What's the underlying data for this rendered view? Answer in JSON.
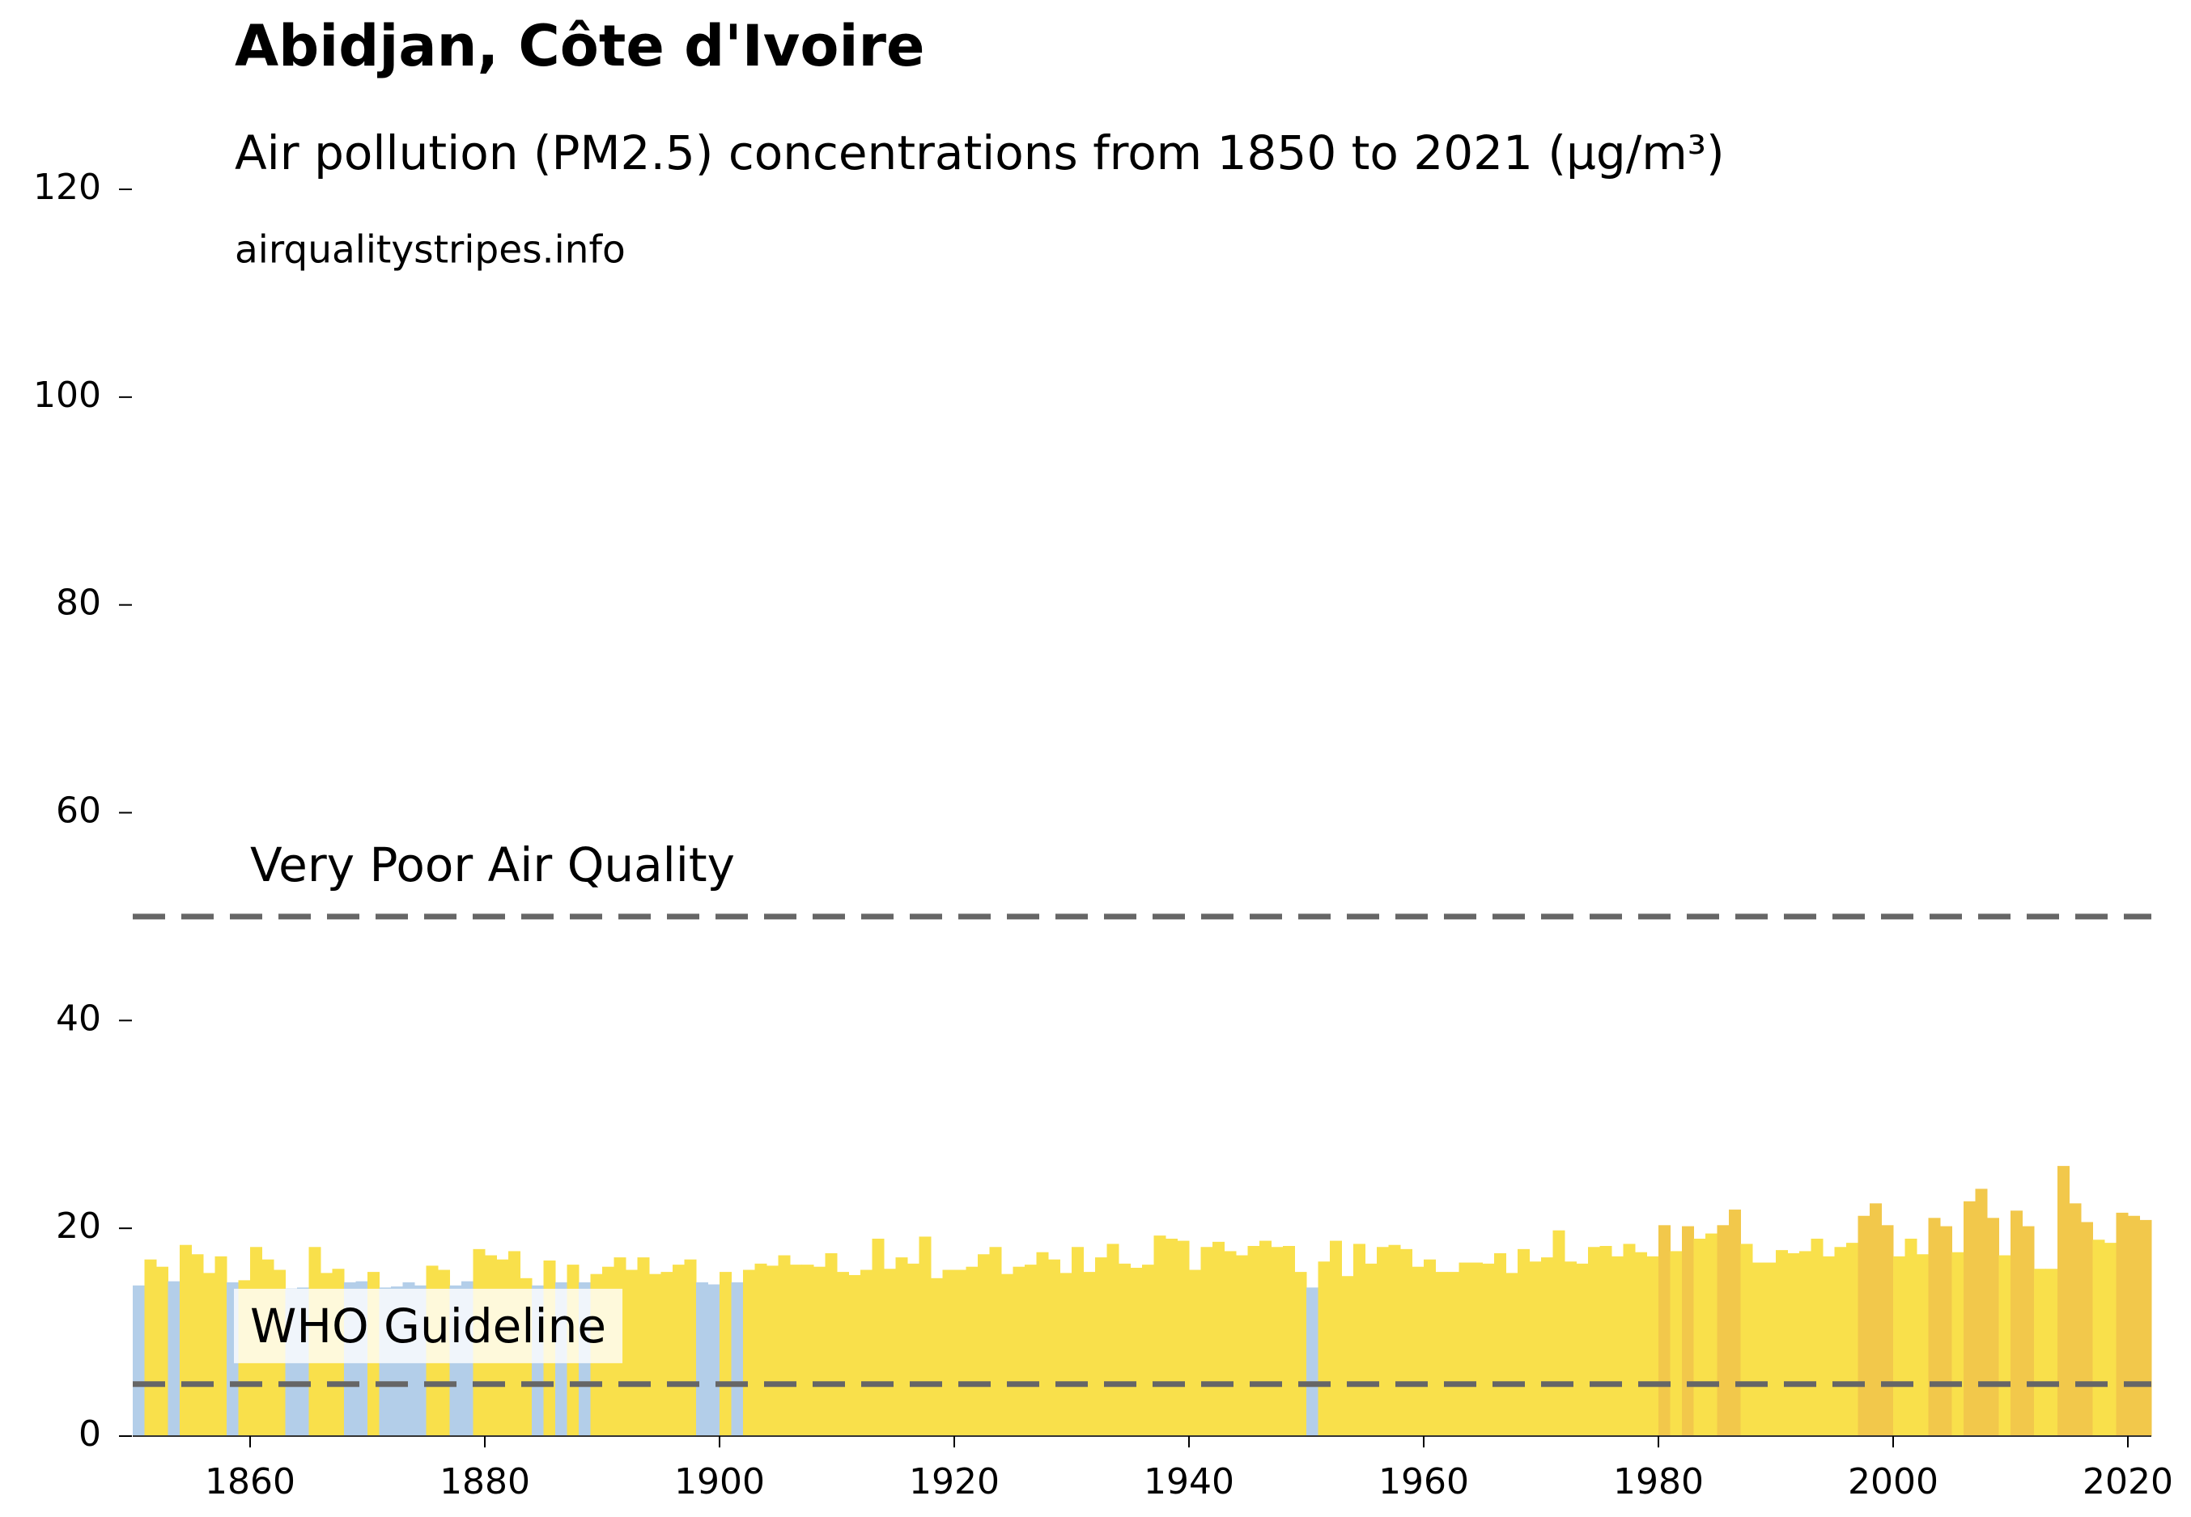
{
  "chart_data": {
    "type": "bar",
    "title": "Abidjan, Côte d'Ivoire",
    "subtitle": "Air pollution (PM2.5) concentrations from 1850 to 2021 (µg/m³)",
    "source": "airqualitystripes.info",
    "x": [
      1850,
      1851,
      1852,
      1853,
      1854,
      1855,
      1856,
      1857,
      1858,
      1859,
      1860,
      1861,
      1862,
      1863,
      1864,
      1865,
      1866,
      1867,
      1868,
      1869,
      1870,
      1871,
      1872,
      1873,
      1874,
      1875,
      1876,
      1877,
      1878,
      1879,
      1880,
      1881,
      1882,
      1883,
      1884,
      1885,
      1886,
      1887,
      1888,
      1889,
      1890,
      1891,
      1892,
      1893,
      1894,
      1895,
      1896,
      1897,
      1898,
      1899,
      1900,
      1901,
      1902,
      1903,
      1904,
      1905,
      1906,
      1907,
      1908,
      1909,
      1910,
      1911,
      1912,
      1913,
      1914,
      1915,
      1916,
      1917,
      1918,
      1919,
      1920,
      1921,
      1922,
      1923,
      1924,
      1925,
      1926,
      1927,
      1928,
      1929,
      1930,
      1931,
      1932,
      1933,
      1934,
      1935,
      1936,
      1937,
      1938,
      1939,
      1940,
      1941,
      1942,
      1943,
      1944,
      1945,
      1946,
      1947,
      1948,
      1949,
      1950,
      1951,
      1952,
      1953,
      1954,
      1955,
      1956,
      1957,
      1958,
      1959,
      1960,
      1961,
      1962,
      1963,
      1964,
      1965,
      1966,
      1967,
      1968,
      1969,
      1970,
      1971,
      1972,
      1973,
      1974,
      1975,
      1976,
      1977,
      1978,
      1979,
      1980,
      1981,
      1982,
      1983,
      1984,
      1985,
      1986,
      1987,
      1988,
      1989,
      1990,
      1991,
      1992,
      1993,
      1994,
      1995,
      1996,
      1997,
      1998,
      1999,
      2000,
      2001,
      2002,
      2003,
      2004,
      2005,
      2006,
      2007,
      2008,
      2009,
      2010,
      2011,
      2012,
      2013,
      2014,
      2015,
      2016,
      2017,
      2018,
      2019,
      2020,
      2021
    ],
    "values": [
      14.5,
      17,
      16.3,
      14.9,
      18.4,
      17.5,
      15.7,
      17.3,
      14.8,
      15,
      18.2,
      17,
      16,
      14.2,
      14.3,
      18.2,
      15.7,
      16.1,
      14.8,
      14.9,
      15.8,
      14.3,
      14.4,
      14.8,
      14.5,
      16.4,
      16,
      14.5,
      14.9,
      18,
      17.4,
      17,
      17.8,
      15.2,
      14.5,
      16.9,
      14.8,
      16.5,
      14.8,
      15.6,
      16.3,
      17.2,
      16,
      17.2,
      15.6,
      15.8,
      16.5,
      17,
      14.8,
      14.6,
      15.8,
      14.8,
      16,
      16.6,
      16.4,
      17.4,
      16.5,
      16.5,
      16.3,
      17.6,
      15.8,
      15.5,
      16,
      19,
      16.1,
      17.2,
      16.6,
      19.2,
      15.2,
      16,
      16,
      16.3,
      17.5,
      18.2,
      15.6,
      16.3,
      16.5,
      17.7,
      17,
      15.7,
      18.2,
      15.8,
      17.2,
      18.5,
      16.6,
      16.2,
      16.5,
      19.3,
      19,
      18.8,
      16,
      18.2,
      18.7,
      17.8,
      17.4,
      18.3,
      18.8,
      18.2,
      18.3,
      15.8,
      14.3,
      16.8,
      18.8,
      15.4,
      18.5,
      16.6,
      18.2,
      18.4,
      18,
      16.3,
      17,
      15.8,
      15.8,
      16.7,
      16.7,
      16.6,
      17.6,
      15.7,
      18,
      16.8,
      17.2,
      19.8,
      16.8,
      16.6,
      18.2,
      18.3,
      17.3,
      18.5,
      17.7,
      17.3,
      20.3,
      17.8,
      20.2,
      19,
      19.5,
      20.3,
      21.8,
      18.5,
      16.7,
      16.7,
      17.9,
      17.6,
      17.8,
      19,
      17.3,
      18.2,
      18.6,
      21.2,
      22.4,
      20.3,
      17.3,
      19,
      17.5,
      21,
      20.2,
      17.7,
      22.6,
      23.8,
      21,
      17.4,
      21.7,
      20.2,
      16.1,
      16.1,
      26,
      22.4,
      20.6,
      18.9,
      18.6,
      21.5,
      21.2,
      20.8
    ],
    "colors": [
      "#b3cee9",
      "#f9e04b",
      "#f9e04b",
      "#b3cee9",
      "#f9e04b",
      "#f9e04b",
      "#f9e04b",
      "#f9e04b",
      "#b3cee9",
      "#f9e04b",
      "#f9e04b",
      "#f9e04b",
      "#f9e04b",
      "#b3cee9",
      "#b3cee9",
      "#f9e04b",
      "#f9e04b",
      "#f9e04b",
      "#b3cee9",
      "#b3cee9",
      "#f9e04b",
      "#b3cee9",
      "#b3cee9",
      "#b3cee9",
      "#b3cee9",
      "#f9e04b",
      "#f9e04b",
      "#b3cee9",
      "#b3cee9",
      "#f9e04b",
      "#f9e04b",
      "#f9e04b",
      "#f9e04b",
      "#f9e04b",
      "#b3cee9",
      "#f9e04b",
      "#b3cee9",
      "#f9e04b",
      "#b3cee9",
      "#f9e04b",
      "#f9e04b",
      "#f9e04b",
      "#f9e04b",
      "#f9e04b",
      "#f9e04b",
      "#f9e04b",
      "#f9e04b",
      "#f9e04b",
      "#b3cee9",
      "#b3cee9",
      "#f9e04b",
      "#b3cee9",
      "#f9e04b",
      "#f9e04b",
      "#f9e04b",
      "#f9e04b",
      "#f9e04b",
      "#f9e04b",
      "#f9e04b",
      "#f9e04b",
      "#f9e04b",
      "#f9e04b",
      "#f9e04b",
      "#f9e04b",
      "#f9e04b",
      "#f9e04b",
      "#f9e04b",
      "#f9e04b",
      "#f9e04b",
      "#f9e04b",
      "#f9e04b",
      "#f9e04b",
      "#f9e04b",
      "#f9e04b",
      "#f9e04b",
      "#f9e04b",
      "#f9e04b",
      "#f9e04b",
      "#f9e04b",
      "#f9e04b",
      "#f9e04b",
      "#f9e04b",
      "#f9e04b",
      "#f9e04b",
      "#f9e04b",
      "#f9e04b",
      "#f9e04b",
      "#f9e04b",
      "#f9e04b",
      "#f9e04b",
      "#f9e04b",
      "#f9e04b",
      "#f9e04b",
      "#f9e04b",
      "#f9e04b",
      "#f9e04b",
      "#f9e04b",
      "#f9e04b",
      "#f9e04b",
      "#f9e04b",
      "#b3cee9",
      "#f9e04b",
      "#f9e04b",
      "#f9e04b",
      "#f9e04b",
      "#f9e04b",
      "#f9e04b",
      "#f9e04b",
      "#f9e04b",
      "#f9e04b",
      "#f9e04b",
      "#f9e04b",
      "#f9e04b",
      "#f9e04b",
      "#f9e04b",
      "#f9e04b",
      "#f9e04b",
      "#f9e04b",
      "#f9e04b",
      "#f9e04b",
      "#f9e04b",
      "#f9e04b",
      "#f9e04b",
      "#f9e04b",
      "#f9e04b",
      "#f9e04b",
      "#f9e04b",
      "#f9e04b",
      "#f9e04b",
      "#f9e04b",
      "#f2c84b",
      "#f9e04b",
      "#f2c84b",
      "#f9e04b",
      "#f9e04b",
      "#f2c84b",
      "#f2c84b",
      "#f9e04b",
      "#f9e04b",
      "#f9e04b",
      "#f9e04b",
      "#f9e04b",
      "#f9e04b",
      "#f9e04b",
      "#f9e04b",
      "#f9e04b",
      "#f9e04b",
      "#f2c84b",
      "#f2c84b",
      "#f2c84b",
      "#f9e04b",
      "#f9e04b",
      "#f9e04b",
      "#f2c84b",
      "#f2c84b",
      "#f9e04b",
      "#f2c84b",
      "#f2c84b",
      "#f2c84b",
      "#f9e04b",
      "#f2c84b",
      "#f2c84b",
      "#f9e04b",
      "#f9e04b",
      "#f2c84b",
      "#f2c84b",
      "#f2c84b",
      "#f9e04b",
      "#f9e04b",
      "#f2c84b",
      "#f2c84b",
      "#f2c84b"
    ],
    "reference_lines": [
      {
        "value": 50,
        "label": "Very Poor Air Quality"
      },
      {
        "value": 5,
        "label": "WHO Guideline"
      }
    ],
    "xlim": [
      1850,
      2022
    ],
    "ylim": [
      0,
      120
    ],
    "xticks": [
      1860,
      1880,
      1900,
      1920,
      1940,
      1960,
      1980,
      2000,
      2020
    ],
    "yticks": [
      0,
      20,
      40,
      60,
      80,
      100,
      120
    ]
  }
}
